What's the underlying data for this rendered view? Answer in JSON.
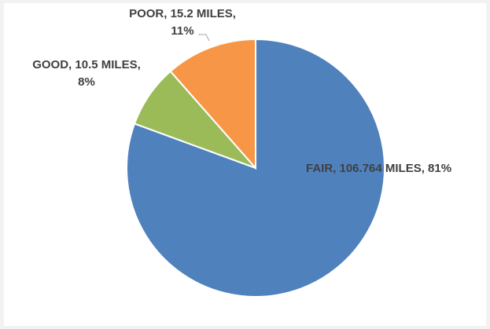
{
  "chart_data": {
    "type": "pie",
    "slices": [
      {
        "name": "FAIR",
        "miles": 106.764,
        "percent": 81,
        "color": "#4f81bd",
        "label_lines": [
          "FAIR, 106.764 MILES, 81%"
        ]
      },
      {
        "name": "GOOD",
        "miles": 10.5,
        "percent": 8,
        "color": "#9bbb59",
        "label_lines": [
          "GOOD, 10.5 MILES,",
          "8%"
        ]
      },
      {
        "name": "POOR",
        "miles": 15.2,
        "percent": 11,
        "color": "#f79646",
        "label_lines": [
          "POOR, 15.2 MILES,",
          "11%"
        ]
      }
    ],
    "start_angle": "top, clockwise",
    "legend": "none",
    "data_labels": "category, value, percent"
  }
}
